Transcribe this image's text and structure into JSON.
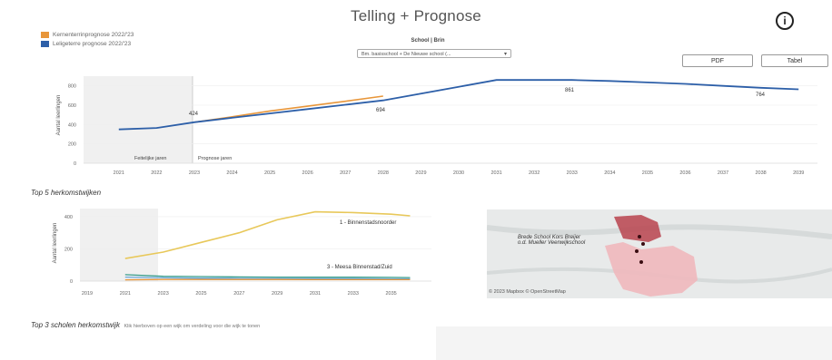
{
  "title": "Telling + Prognose",
  "info_icon": "info-icon",
  "legend": {
    "items": [
      {
        "label": "Kernenterrinprognose 2022/'23",
        "color": "#e8963a"
      },
      {
        "label": "Leligeterre prognose 2022/'23",
        "color": "#2d5fa8"
      }
    ]
  },
  "school_filter": {
    "label": "School | Brin",
    "selected": "Bm. basisschool + De Nieuwe school (..."
  },
  "buttons": {
    "pdf": "PDF",
    "tabel": "Tabel"
  },
  "top_chart": {
    "ylabel": "Aantal leerlingen",
    "yticks": [
      "800",
      "600",
      "400",
      "200",
      "0"
    ],
    "region_left": "Feitelijke jaren",
    "region_right": "Prognose jaren",
    "data_labels": [
      "424",
      "694",
      "861",
      "764"
    ]
  },
  "section_herkomst": "Top 5 herkomstwijken",
  "bottom_chart": {
    "ylabel": "Aantal leerlingen",
    "yticks": [
      "400",
      "200",
      "0"
    ],
    "xticks": [
      "2019",
      "2021",
      "2023",
      "2025",
      "2027",
      "2029",
      "2031",
      "2033",
      "2035"
    ],
    "label_1": "1 - Binnenstadsnoorder",
    "label_3": "3 - Meesa Binnenstad/Zuid"
  },
  "map": {
    "school_line1": "Brede School Kors Breijer",
    "school_line2": "o.d. Mueller Veenwijkschool",
    "credit": "© 2023 Mapbox © OpenStreetMap"
  },
  "section_scholen": "Top 3 scholen herkomstwijk",
  "section_scholen_hint": "Klik hierboven op een wijk om verdeling voor die wijk te tonen",
  "chart_data": [
    {
      "type": "line",
      "x": [
        2021,
        2022,
        2023,
        2024,
        2025,
        2026,
        2027,
        2028,
        2029,
        2030,
        2031,
        2032,
        2033,
        2034,
        2035,
        2036,
        2037,
        2038,
        2039
      ],
      "xticks": [
        "2021",
        "2022",
        "2023",
        "2024",
        "2025",
        "2026",
        "2027",
        "2028",
        "2029",
        "2030",
        "2031",
        "2032",
        "2033",
        "2034",
        "2035",
        "2036",
        "2037",
        "2038",
        "2039"
      ],
      "series": [
        {
          "name": "Kernenterrinprognose 2022/'23",
          "color": "#e8963a",
          "points": [
            [
              2023,
              424
            ],
            [
              2024,
              480
            ],
            [
              2025,
              540
            ],
            [
              2026,
              590
            ],
            [
              2027,
              640
            ],
            [
              2028,
              694
            ]
          ]
        },
        {
          "name": "Leligeterre prognose 2022/'23",
          "color": "#2d5fa8",
          "points": [
            [
              2021,
              350
            ],
            [
              2022,
              365
            ],
            [
              2023,
              424
            ],
            [
              2024,
              470
            ],
            [
              2025,
              515
            ],
            [
              2026,
              560
            ],
            [
              2027,
              605
            ],
            [
              2028,
              650
            ],
            [
              2029,
              720
            ],
            [
              2030,
              790
            ],
            [
              2031,
              861
            ],
            [
              2032,
              861
            ],
            [
              2033,
              861
            ],
            [
              2034,
              850
            ],
            [
              2035,
              835
            ],
            [
              2036,
              820
            ],
            [
              2037,
              800
            ],
            [
              2038,
              780
            ],
            [
              2039,
              764
            ]
          ]
        }
      ],
      "ylim": [
        0,
        900
      ],
      "highlight_until": 2023
    },
    {
      "type": "line",
      "series": [
        {
          "name": "1 - Binnenstadsnoorder",
          "color": "#e8c85a",
          "points": [
            [
              2021,
              140
            ],
            [
              2023,
              180
            ],
            [
              2025,
              240
            ],
            [
              2027,
              300
            ],
            [
              2029,
              380
            ],
            [
              2031,
              430
            ],
            [
              2033,
              425
            ],
            [
              2035,
              415
            ],
            [
              2036,
              405
            ]
          ]
        },
        {
          "name": "3 - Meesa Binnenstad/Zuid",
          "color": "#3a9e8c",
          "points": [
            [
              2021,
              40
            ],
            [
              2023,
              30
            ],
            [
              2025,
              28
            ],
            [
              2027,
              26
            ],
            [
              2029,
              25
            ],
            [
              2031,
              24
            ],
            [
              2033,
              24
            ],
            [
              2035,
              23
            ],
            [
              2036,
              22
            ]
          ]
        },
        {
          "name": "",
          "color": "#6aa7d8",
          "points": [
            [
              2021,
              25
            ],
            [
              2023,
              20
            ],
            [
              2025,
              18
            ],
            [
              2027,
              17
            ],
            [
              2029,
              16
            ],
            [
              2031,
              15
            ],
            [
              2033,
              15
            ],
            [
              2035,
              14
            ],
            [
              2036,
              14
            ]
          ]
        },
        {
          "name": "",
          "color": "#e8963a",
          "points": [
            [
              2021,
              8
            ],
            [
              2023,
              10
            ],
            [
              2025,
              10
            ],
            [
              2027,
              10
            ],
            [
              2029,
              10
            ],
            [
              2031,
              9
            ],
            [
              2033,
              9
            ],
            [
              2035,
              9
            ],
            [
              2036,
              9
            ]
          ]
        }
      ],
      "ylim": [
        0,
        450
      ],
      "xlim": [
        2019,
        2036.5
      ],
      "highlight_until": 2023
    }
  ]
}
